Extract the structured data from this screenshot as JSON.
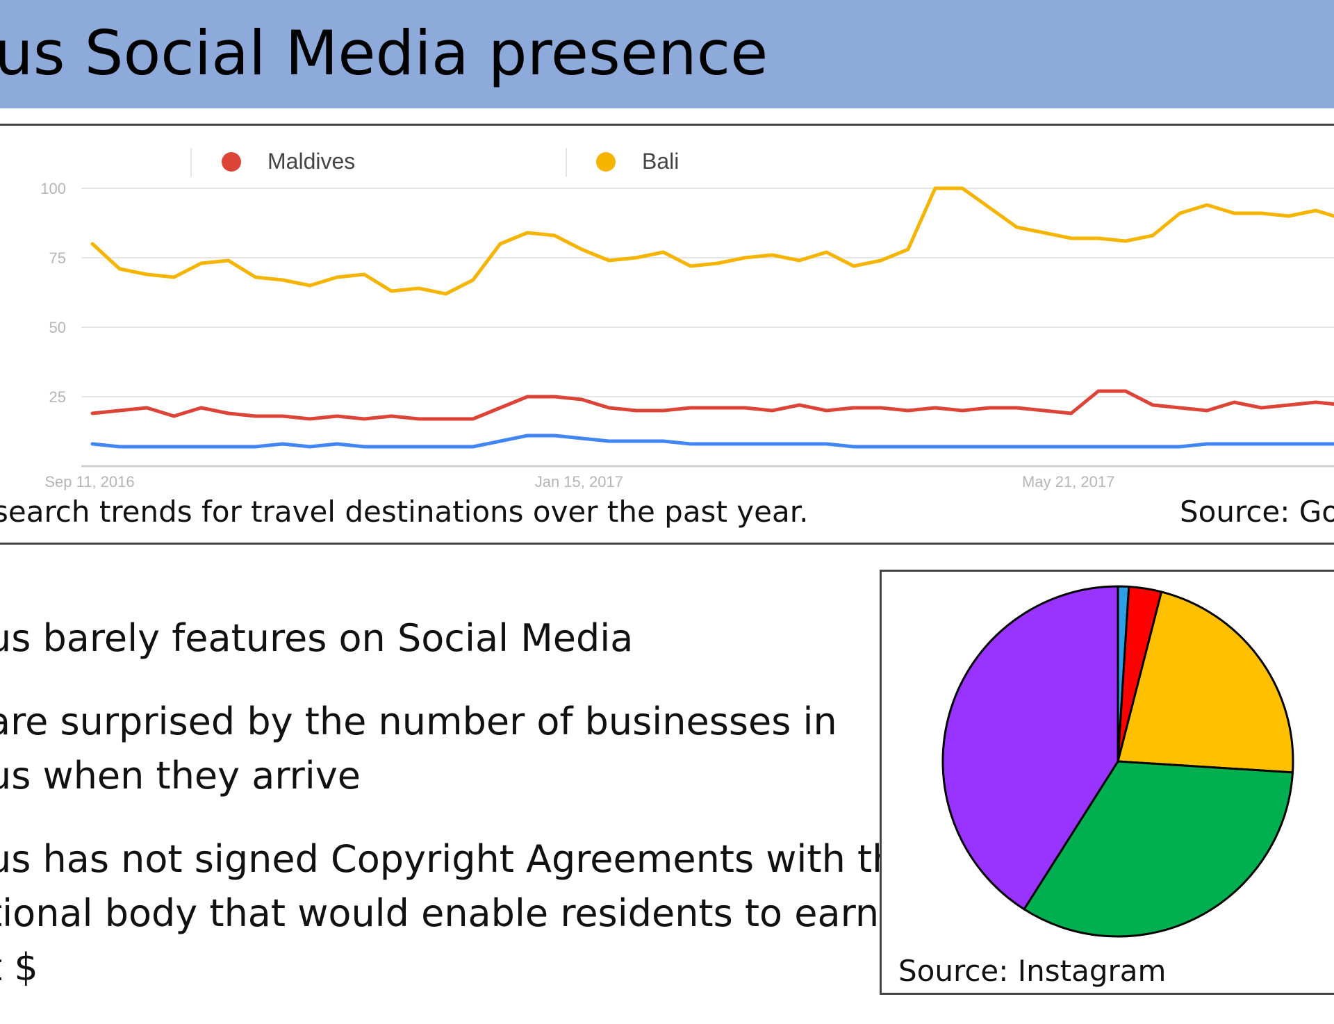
{
  "header": {
    "title": "us Social Media presence"
  },
  "trend": {
    "caption": "search trends for travel destinations over the past year.",
    "source": "Source: Go"
  },
  "bullets": [
    {
      "lines": [
        "us barely features on Social Media"
      ]
    },
    {
      "lines": [
        " are surprised by the number of businesses in",
        "us when they arrive"
      ]
    },
    {
      "lines": [
        "us has not signed Copyright Agreements with the",
        "tional body that would enable residents to earn",
        "t $"
      ]
    }
  ],
  "pie": {
    "source": "Source: Instagram"
  },
  "chart_data": [
    {
      "type": "line",
      "title": "",
      "xlabel": "",
      "ylabel": "",
      "ylim": [
        0,
        100
      ],
      "y_ticks": [
        25,
        50,
        75,
        100
      ],
      "x_tick_labels": [
        {
          "label": "Sep 11, 2016",
          "week": 0
        },
        {
          "label": "Jan 15, 2017",
          "week": 18
        },
        {
          "label": "May 21, 2017",
          "week": 36
        }
      ],
      "x_unit": "weekly, starting Sep 11, 2016",
      "grid": true,
      "legend": "top",
      "series": [
        {
          "name": "Maldives",
          "color": "#db4437",
          "values": [
            19,
            20,
            21,
            18,
            21,
            19,
            18,
            18,
            17,
            18,
            17,
            18,
            17,
            17,
            17,
            21,
            25,
            25,
            24,
            21,
            20,
            20,
            21,
            21,
            21,
            20,
            22,
            20,
            21,
            21,
            20,
            21,
            20,
            21,
            21,
            20,
            19,
            27,
            27,
            22,
            21,
            20,
            23,
            21,
            22,
            23,
            22
          ]
        },
        {
          "name": "Bali",
          "color": "#f4b400",
          "values": [
            80,
            71,
            69,
            68,
            73,
            74,
            68,
            67,
            65,
            68,
            69,
            63,
            64,
            62,
            67,
            80,
            84,
            83,
            78,
            74,
            75,
            77,
            72,
            73,
            75,
            76,
            74,
            77,
            72,
            74,
            78,
            100,
            100,
            93,
            86,
            84,
            82,
            82,
            81,
            83,
            91,
            94,
            91,
            91,
            90,
            92,
            89
          ]
        },
        {
          "name": "",
          "color": "#4285f4",
          "values": [
            8,
            7,
            7,
            7,
            7,
            7,
            7,
            8,
            7,
            8,
            7,
            7,
            7,
            7,
            7,
            9,
            11,
            11,
            10,
            9,
            9,
            9,
            8,
            8,
            8,
            8,
            8,
            8,
            7,
            7,
            7,
            7,
            7,
            7,
            7,
            7,
            7,
            7,
            7,
            7,
            7,
            8,
            8,
            8,
            8,
            8,
            8
          ]
        }
      ]
    },
    {
      "type": "pie",
      "title": "",
      "legend": "none",
      "start_angle_deg": 0,
      "direction": "clockwise",
      "slices": [
        {
          "label": "",
          "value": 1,
          "color": "#2e9fe6"
        },
        {
          "label": "",
          "value": 3,
          "color": "#ff0000"
        },
        {
          "label": "",
          "value": 22,
          "color": "#ffc000"
        },
        {
          "label": "",
          "value": 33,
          "color": "#00b050"
        },
        {
          "label": "",
          "value": 41,
          "color": "#9933ff"
        }
      ]
    }
  ]
}
